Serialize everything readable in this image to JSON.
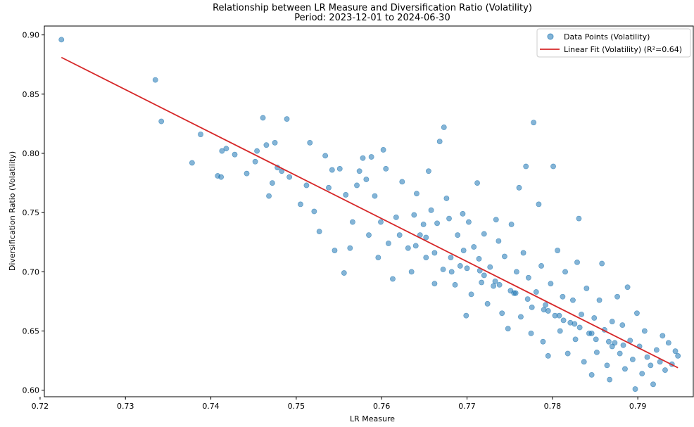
{
  "chart_data": {
    "type": "scatter",
    "title": "Relationship between LR Measure and Diversification Ratio (Volatility)",
    "subtitle": "Period: 2023-12-01 to 2024-06-30",
    "xlabel": "LR Measure",
    "ylabel": "Diversification Ratio (Volatility)",
    "xlim": [
      0.7205,
      0.7965
    ],
    "ylim": [
      0.5945,
      0.9075
    ],
    "xticks": [
      "0.72",
      "0.73",
      "0.74",
      "0.75",
      "0.76",
      "0.77",
      "0.78",
      "0.79"
    ],
    "yticks": [
      "0.60",
      "0.65",
      "0.70",
      "0.75",
      "0.80",
      "0.85",
      "0.90"
    ],
    "grid": false,
    "legend_position": "top-right",
    "series": [
      {
        "name": "Data Points (Volatility)",
        "kind": "scatter",
        "color": "#1f77b4",
        "points": [
          [
            0.7225,
            0.896
          ],
          [
            0.7335,
            0.862
          ],
          [
            0.7342,
            0.827
          ],
          [
            0.7378,
            0.792
          ],
          [
            0.7388,
            0.816
          ],
          [
            0.7408,
            0.781
          ],
          [
            0.7412,
            0.78
          ],
          [
            0.7413,
            0.802
          ],
          [
            0.7418,
            0.804
          ],
          [
            0.7428,
            0.799
          ],
          [
            0.7442,
            0.783
          ],
          [
            0.7452,
            0.793
          ],
          [
            0.7454,
            0.802
          ],
          [
            0.7461,
            0.83
          ],
          [
            0.7465,
            0.807
          ],
          [
            0.7468,
            0.764
          ],
          [
            0.7472,
            0.775
          ],
          [
            0.7475,
            0.809
          ],
          [
            0.7478,
            0.788
          ],
          [
            0.7483,
            0.785
          ],
          [
            0.7489,
            0.829
          ],
          [
            0.7492,
            0.78
          ],
          [
            0.7505,
            0.757
          ],
          [
            0.7512,
            0.773
          ],
          [
            0.7516,
            0.809
          ],
          [
            0.7521,
            0.751
          ],
          [
            0.7527,
            0.734
          ],
          [
            0.7534,
            0.798
          ],
          [
            0.7538,
            0.771
          ],
          [
            0.7542,
            0.786
          ],
          [
            0.7545,
            0.718
          ],
          [
            0.7551,
            0.787
          ],
          [
            0.7556,
            0.699
          ],
          [
            0.7558,
            0.765
          ],
          [
            0.7563,
            0.72
          ],
          [
            0.7566,
            0.742
          ],
          [
            0.7571,
            0.773
          ],
          [
            0.7574,
            0.785
          ],
          [
            0.7578,
            0.796
          ],
          [
            0.7582,
            0.778
          ],
          [
            0.7585,
            0.731
          ],
          [
            0.7588,
            0.797
          ],
          [
            0.7592,
            0.764
          ],
          [
            0.7596,
            0.712
          ],
          [
            0.7599,
            0.742
          ],
          [
            0.7602,
            0.803
          ],
          [
            0.7605,
            0.787
          ],
          [
            0.7608,
            0.724
          ],
          [
            0.7613,
            0.694
          ],
          [
            0.7617,
            0.746
          ],
          [
            0.7624,
            0.776
          ],
          [
            0.7631,
            0.72
          ],
          [
            0.7635,
            0.7
          ],
          [
            0.7638,
            0.748
          ],
          [
            0.7641,
            0.766
          ],
          [
            0.7645,
            0.731
          ],
          [
            0.7649,
            0.74
          ],
          [
            0.7652,
            0.712
          ],
          [
            0.7655,
            0.785
          ],
          [
            0.7658,
            0.752
          ],
          [
            0.7662,
            0.69
          ],
          [
            0.7665,
            0.741
          ],
          [
            0.7668,
            0.81
          ],
          [
            0.7673,
            0.822
          ],
          [
            0.7676,
            0.762
          ],
          [
            0.7679,
            0.745
          ],
          [
            0.7682,
            0.7
          ],
          [
            0.7686,
            0.689
          ],
          [
            0.7689,
            0.731
          ],
          [
            0.7692,
            0.705
          ],
          [
            0.7695,
            0.749
          ],
          [
            0.7699,
            0.663
          ],
          [
            0.7702,
            0.742
          ],
          [
            0.7705,
            0.681
          ],
          [
            0.7708,
            0.721
          ],
          [
            0.7712,
            0.775
          ],
          [
            0.7714,
            0.711
          ],
          [
            0.7717,
            0.691
          ],
          [
            0.772,
            0.732
          ],
          [
            0.7724,
            0.673
          ],
          [
            0.7727,
            0.704
          ],
          [
            0.7731,
            0.688
          ],
          [
            0.7734,
            0.744
          ],
          [
            0.7737,
            0.726
          ],
          [
            0.7741,
            0.665
          ],
          [
            0.7744,
            0.713
          ],
          [
            0.7748,
            0.652
          ],
          [
            0.7752,
            0.74
          ],
          [
            0.7755,
            0.682
          ],
          [
            0.7758,
            0.7
          ],
          [
            0.7761,
            0.771
          ],
          [
            0.7763,
            0.662
          ],
          [
            0.7766,
            0.716
          ],
          [
            0.7769,
            0.789
          ],
          [
            0.7772,
            0.695
          ],
          [
            0.7775,
            0.648
          ],
          [
            0.7778,
            0.826
          ],
          [
            0.7781,
            0.683
          ],
          [
            0.7784,
            0.757
          ],
          [
            0.7787,
            0.705
          ],
          [
            0.7789,
            0.641
          ],
          [
            0.7792,
            0.672
          ],
          [
            0.7795,
            0.629
          ],
          [
            0.7798,
            0.69
          ],
          [
            0.7801,
            0.789
          ],
          [
            0.7803,
            0.663
          ],
          [
            0.7806,
            0.718
          ],
          [
            0.7809,
            0.65
          ],
          [
            0.7812,
            0.679
          ],
          [
            0.7815,
            0.7
          ],
          [
            0.7818,
            0.631
          ],
          [
            0.7821,
            0.657
          ],
          [
            0.7824,
            0.676
          ],
          [
            0.7827,
            0.643
          ],
          [
            0.7829,
            0.708
          ],
          [
            0.7831,
            0.745
          ],
          [
            0.7834,
            0.664
          ],
          [
            0.7837,
            0.624
          ],
          [
            0.784,
            0.686
          ],
          [
            0.7843,
            0.648
          ],
          [
            0.7846,
            0.613
          ],
          [
            0.7849,
            0.661
          ],
          [
            0.7852,
            0.632
          ],
          [
            0.7855,
            0.676
          ],
          [
            0.7858,
            0.707
          ],
          [
            0.7861,
            0.651
          ],
          [
            0.7864,
            0.621
          ],
          [
            0.7867,
            0.609
          ],
          [
            0.787,
            0.658
          ],
          [
            0.7873,
            0.64
          ],
          [
            0.7876,
            0.679
          ],
          [
            0.7879,
            0.631
          ],
          [
            0.7882,
            0.655
          ],
          [
            0.7885,
            0.618
          ],
          [
            0.7888,
            0.687
          ],
          [
            0.7891,
            0.642
          ],
          [
            0.7894,
            0.626
          ],
          [
            0.7897,
            0.601
          ],
          [
            0.7899,
            0.665
          ],
          [
            0.7902,
            0.637
          ],
          [
            0.7905,
            0.614
          ],
          [
            0.7908,
            0.65
          ],
          [
            0.7911,
            0.628
          ],
          [
            0.7915,
            0.621
          ],
          [
            0.7918,
            0.605
          ],
          [
            0.7922,
            0.634
          ],
          [
            0.7926,
            0.624
          ],
          [
            0.7929,
            0.646
          ],
          [
            0.7932,
            0.617
          ],
          [
            0.7936,
            0.64
          ],
          [
            0.794,
            0.622
          ],
          [
            0.7944,
            0.633
          ],
          [
            0.7947,
            0.629
          ],
          [
            0.7652,
            0.729
          ],
          [
            0.7672,
            0.702
          ],
          [
            0.7696,
            0.718
          ],
          [
            0.7715,
            0.701
          ],
          [
            0.7733,
            0.692
          ],
          [
            0.7751,
            0.684
          ],
          [
            0.7771,
            0.677
          ],
          [
            0.779,
            0.668
          ],
          [
            0.7808,
            0.663
          ],
          [
            0.7826,
            0.656
          ],
          [
            0.7846,
            0.648
          ],
          [
            0.7866,
            0.641
          ],
          [
            0.7883,
            0.638
          ],
          [
            0.7621,
            0.731
          ],
          [
            0.764,
            0.722
          ],
          [
            0.7662,
            0.716
          ],
          [
            0.7681,
            0.712
          ],
          [
            0.77,
            0.703
          ],
          [
            0.772,
            0.697
          ],
          [
            0.7738,
            0.689
          ],
          [
            0.7757,
            0.682
          ],
          [
            0.7776,
            0.67
          ],
          [
            0.7795,
            0.667
          ],
          [
            0.7813,
            0.659
          ],
          [
            0.7832,
            0.653
          ],
          [
            0.7851,
            0.643
          ],
          [
            0.787,
            0.637
          ]
        ]
      },
      {
        "name": "Linear Fit (Volatility) (R²=0.64)",
        "kind": "line",
        "color": "#d62728",
        "points": [
          [
            0.7225,
            0.881
          ],
          [
            0.7947,
            0.619
          ]
        ]
      }
    ]
  }
}
